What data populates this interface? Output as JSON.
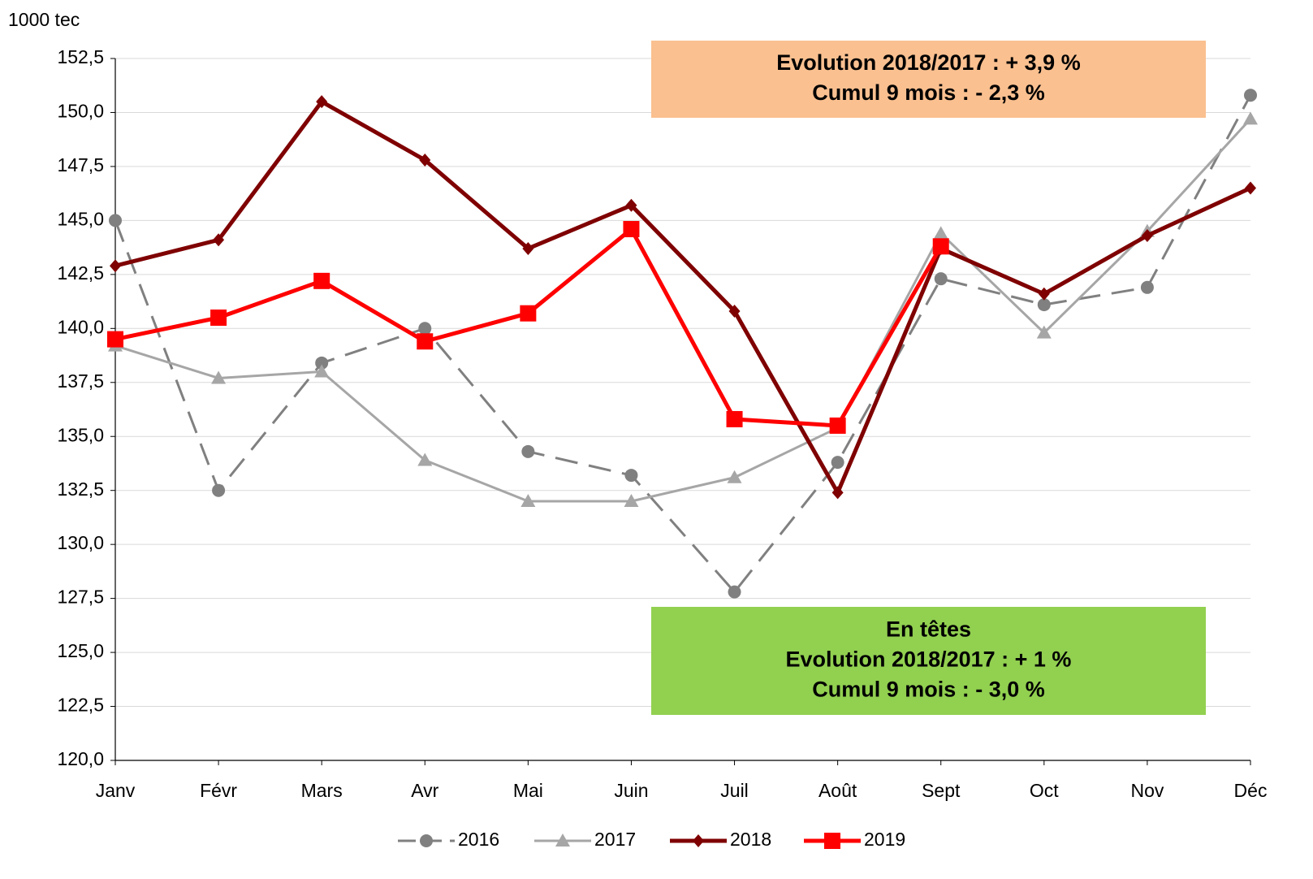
{
  "chart_data": {
    "type": "line",
    "y_label": "1000 tec",
    "categories": [
      "Janv",
      "Févr",
      "Mars",
      "Avr",
      "Mai",
      "Juin",
      "Juil",
      "Août",
      "Sept",
      "Oct",
      "Nov",
      "Déc"
    ],
    "series": [
      {
        "name": "2016",
        "color": "#808080",
        "dash": true,
        "marker": "circle",
        "values": [
          145.0,
          132.5,
          138.4,
          140.0,
          134.3,
          133.2,
          127.8,
          133.8,
          142.3,
          141.1,
          141.9,
          150.8
        ]
      },
      {
        "name": "2017",
        "color": "#a6a6a6",
        "dash": false,
        "marker": "triangle",
        "values": [
          139.2,
          137.7,
          138.0,
          133.9,
          132.0,
          132.0,
          133.1,
          135.4,
          144.4,
          139.8,
          144.5,
          149.7
        ]
      },
      {
        "name": "2018",
        "color": "#7f0000",
        "dash": false,
        "marker": "diamond",
        "values": [
          142.9,
          144.1,
          150.5,
          147.8,
          143.7,
          145.7,
          140.8,
          132.4,
          143.7,
          141.6,
          144.3,
          146.5
        ]
      },
      {
        "name": "2019",
        "color": "#ff0000",
        "dash": false,
        "marker": "square",
        "values": [
          139.5,
          140.5,
          142.2,
          139.4,
          140.7,
          144.6,
          135.8,
          135.5,
          143.8,
          null,
          null,
          null
        ]
      }
    ],
    "ylim": [
      120,
      152.5
    ],
    "yticks": [
      {
        "value": 120,
        "label": "120,0"
      },
      {
        "value": 122.5,
        "label": "122,5"
      },
      {
        "value": 125,
        "label": "125,0"
      },
      {
        "value": 127.5,
        "label": "127,5"
      },
      {
        "value": 130,
        "label": "130,0"
      },
      {
        "value": 132.5,
        "label": "132,5"
      },
      {
        "value": 135,
        "label": "135,0"
      },
      {
        "value": 137.5,
        "label": "137,5"
      },
      {
        "value": 140,
        "label": "140,0"
      },
      {
        "value": 142.5,
        "label": "142,5"
      },
      {
        "value": 145,
        "label": "145,0"
      },
      {
        "value": 147.5,
        "label": "147,5"
      },
      {
        "value": 150,
        "label": "150,0"
      },
      {
        "value": 152.5,
        "label": "152,5"
      }
    ],
    "grid": true,
    "legend": "bottom",
    "annotations": [
      {
        "color": "#fac090",
        "lines": [
          "Evolution 2018/2017 : + 3,9 %",
          "Cumul 9 mois : - 2,3 %"
        ]
      },
      {
        "color": "#92d050",
        "lines": [
          "En têtes",
          "Evolution 2018/2017 : + 1 %",
          "Cumul 9 mois : - 3,0 %"
        ]
      }
    ]
  }
}
